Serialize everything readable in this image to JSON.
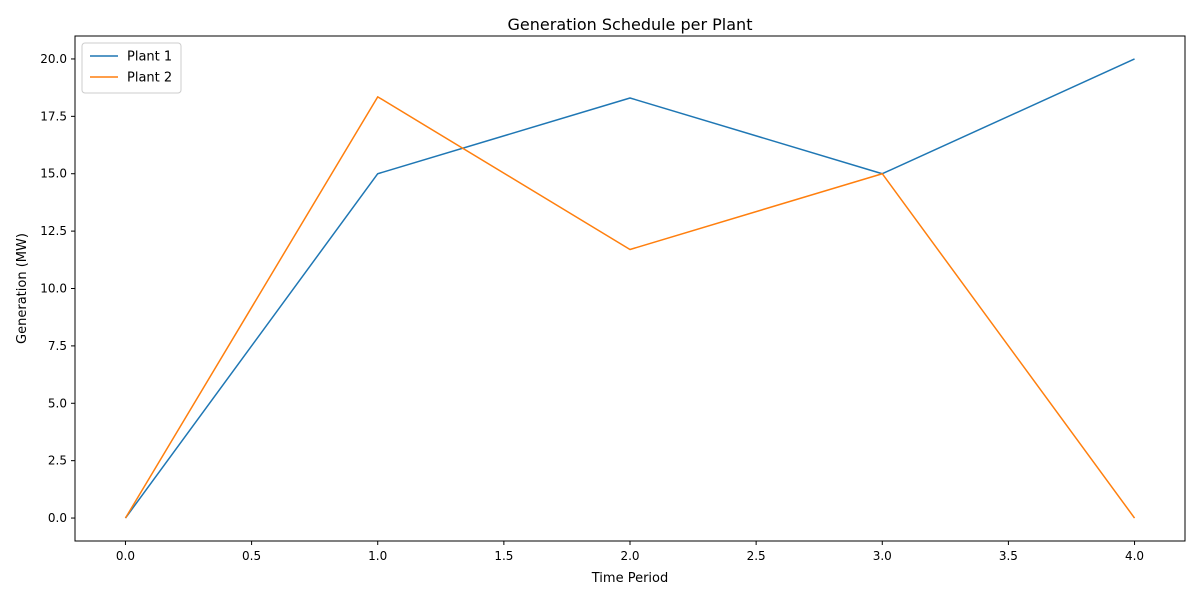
{
  "chart_data": {
    "type": "line",
    "title": "Generation Schedule per Plant",
    "xlabel": "Time Period",
    "ylabel": "Generation (MW)",
    "xlim": [
      -0.2,
      4.2
    ],
    "ylim": [
      -1.0,
      21.0
    ],
    "x_ticks": [
      0.0,
      0.5,
      1.0,
      1.5,
      2.0,
      2.5,
      3.0,
      3.5,
      4.0
    ],
    "x_tick_labels": [
      "0.0",
      "0.5",
      "1.0",
      "1.5",
      "2.0",
      "2.5",
      "3.0",
      "3.5",
      "4.0"
    ],
    "y_ticks": [
      0.0,
      2.5,
      5.0,
      7.5,
      10.0,
      12.5,
      15.0,
      17.5,
      20.0
    ],
    "y_tick_labels": [
      "0.0",
      "2.5",
      "5.0",
      "7.5",
      "10.0",
      "12.5",
      "15.0",
      "17.5",
      "20.0"
    ],
    "grid": false,
    "legend_position": "upper-left",
    "x": [
      0,
      1,
      2,
      3,
      4
    ],
    "series": [
      {
        "name": "Plant 1",
        "color": "#1f77b4",
        "values": [
          0.0,
          15.0,
          18.3,
          15.0,
          20.0
        ]
      },
      {
        "name": "Plant 2",
        "color": "#ff7f0e",
        "values": [
          0.0,
          18.35,
          11.7,
          15.0,
          0.0
        ]
      }
    ]
  }
}
